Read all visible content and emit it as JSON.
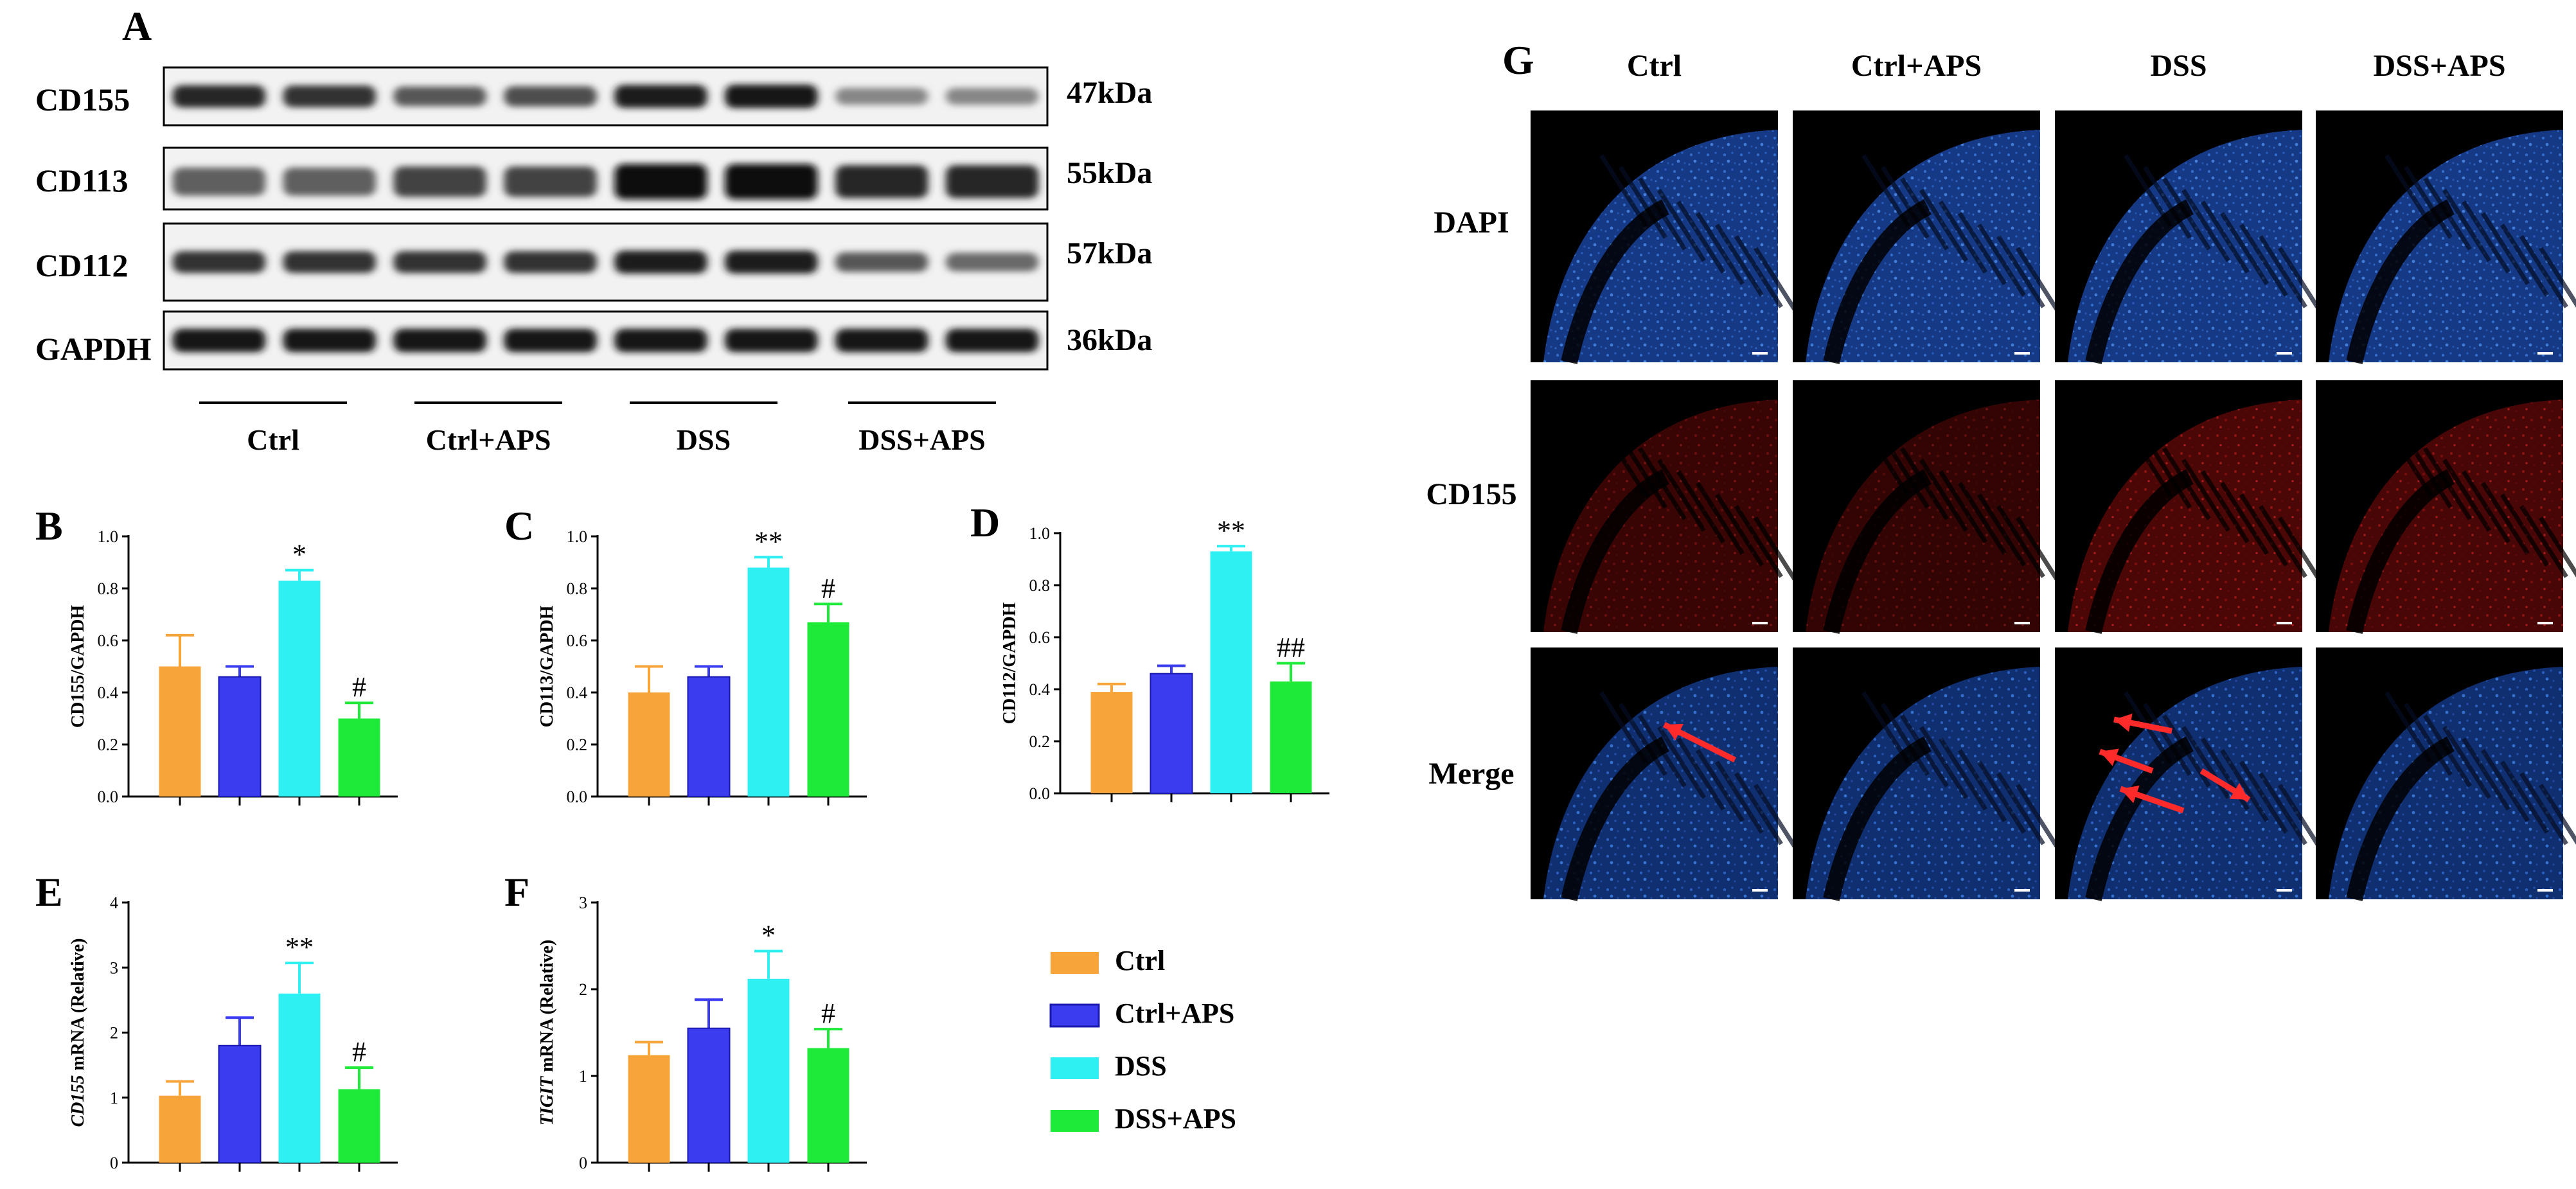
{
  "colors": {
    "ctrl": "#F7A43B",
    "ctrl_aps": "#3B3BF0",
    "dss": "#2EF0F3",
    "dss_aps": "#1EEA3A",
    "dapi": "#1c4fb0",
    "cd155": "#a01010",
    "arrow": "#ff2a2a"
  },
  "panel_a": {
    "letter": "A",
    "rows": [
      {
        "protein": "CD155",
        "kda": "47kDa",
        "intensity": [
          0.85,
          0.8,
          0.6,
          0.65,
          0.9,
          0.95,
          0.35,
          0.35
        ]
      },
      {
        "protein": "CD113",
        "kda": "55kDa",
        "intensity": [
          0.55,
          0.55,
          0.7,
          0.7,
          1.0,
          1.0,
          0.85,
          0.85
        ]
      },
      {
        "protein": "CD112",
        "kda": "57kDa",
        "intensity": [
          0.8,
          0.8,
          0.8,
          0.8,
          0.9,
          0.9,
          0.6,
          0.5
        ]
      },
      {
        "protein": "GAPDH",
        "kda": "36kDa",
        "intensity": [
          0.95,
          0.95,
          0.95,
          0.95,
          0.95,
          0.95,
          0.95,
          0.95
        ]
      }
    ],
    "groups": [
      "Ctrl",
      "Ctrl+APS",
      "DSS",
      "DSS+APS"
    ]
  },
  "chart_data": [
    {
      "panel": "B",
      "type": "bar",
      "categories": [
        "Ctrl",
        "Ctrl+APS",
        "DSS",
        "DSS+APS"
      ],
      "values": [
        0.5,
        0.46,
        0.83,
        0.3
      ],
      "errors": [
        0.12,
        0.04,
        0.04,
        0.06
      ],
      "marks": [
        "",
        "",
        "*",
        "#"
      ],
      "ylabel": "CD155/GAPDH",
      "ylabel_italic": "",
      "ylim": [
        0,
        1.0
      ],
      "yticks": [
        "0.0",
        "0.2",
        "0.4",
        "0.6",
        "0.8",
        "1.0"
      ]
    },
    {
      "panel": "C",
      "type": "bar",
      "categories": [
        "Ctrl",
        "Ctrl+APS",
        "DSS",
        "DSS+APS"
      ],
      "values": [
        0.4,
        0.46,
        0.88,
        0.67
      ],
      "errors": [
        0.1,
        0.04,
        0.04,
        0.07
      ],
      "marks": [
        "",
        "",
        "**",
        "#"
      ],
      "ylabel": "CD113/GAPDH",
      "ylabel_italic": "",
      "ylim": [
        0,
        1.0
      ],
      "yticks": [
        "0.0",
        "0.2",
        "0.4",
        "0.6",
        "0.8",
        "1.0"
      ]
    },
    {
      "panel": "D",
      "type": "bar",
      "categories": [
        "Ctrl",
        "Ctrl+APS",
        "DSS",
        "DSS+APS"
      ],
      "values": [
        0.39,
        0.46,
        0.93,
        0.43
      ],
      "errors": [
        0.03,
        0.03,
        0.02,
        0.07
      ],
      "marks": [
        "",
        "",
        "**",
        "##"
      ],
      "ylabel": "CD112/GAPDH",
      "ylabel_italic": "",
      "ylim": [
        0,
        1.0
      ],
      "yticks": [
        "0.0",
        "0.2",
        "0.4",
        "0.6",
        "0.8",
        "1.0"
      ]
    },
    {
      "panel": "E",
      "type": "bar",
      "categories": [
        "Ctrl",
        "Ctrl+APS",
        "DSS",
        "DSS+APS"
      ],
      "values": [
        1.03,
        1.8,
        2.6,
        1.13
      ],
      "errors": [
        0.22,
        0.43,
        0.47,
        0.33
      ],
      "marks": [
        "",
        "",
        "**",
        "#"
      ],
      "ylabel": " mRNA (Relative)",
      "ylabel_italic": "CD155",
      "ylim": [
        0,
        4
      ],
      "yticks": [
        "0",
        "1",
        "2",
        "3",
        "4"
      ]
    },
    {
      "panel": "F",
      "type": "bar",
      "categories": [
        "Ctrl",
        "Ctrl+APS",
        "DSS",
        "DSS+APS"
      ],
      "values": [
        1.24,
        1.55,
        2.12,
        1.32
      ],
      "errors": [
        0.15,
        0.33,
        0.32,
        0.22
      ],
      "marks": [
        "",
        "",
        "*",
        "#"
      ],
      "ylabel": " mRNA (Relative)",
      "ylabel_italic": "TIGIT",
      "ylim": [
        0,
        3
      ],
      "yticks": [
        "0",
        "1",
        "2",
        "3"
      ]
    }
  ],
  "legend": [
    "Ctrl",
    "Ctrl+APS",
    "DSS",
    "DSS+APS"
  ],
  "panel_g": {
    "letter": "G",
    "columns": [
      "Ctrl",
      "Ctrl+APS",
      "DSS",
      "DSS+APS"
    ],
    "rows": [
      "DAPI",
      "CD155",
      "Merge"
    ],
    "red_intensity": [
      0.45,
      0.35,
      0.8,
      0.75
    ]
  }
}
